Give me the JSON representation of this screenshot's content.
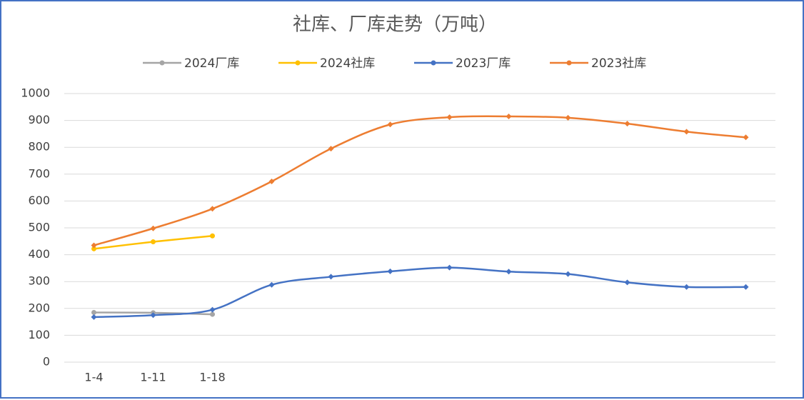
{
  "chart_data": {
    "type": "line",
    "title": "社库、厂库走势（万吨）",
    "categories": [
      "1-4",
      "1-11",
      "1-18",
      null,
      null,
      null,
      null,
      null,
      null,
      null,
      null,
      null
    ],
    "series": [
      {
        "name": "2024厂库",
        "color": "#a5a5a5",
        "marker": "circle",
        "values": [
          185,
          184,
          178,
          null,
          null,
          null,
          null,
          null,
          null,
          null,
          null,
          null
        ]
      },
      {
        "name": "2024社库",
        "color": "#ffc000",
        "marker": "circle",
        "values": [
          422,
          448,
          470,
          null,
          null,
          null,
          null,
          null,
          null,
          null,
          null,
          null
        ]
      },
      {
        "name": "2023厂库",
        "color": "#4472c4",
        "marker": "diamond",
        "values": [
          168,
          175,
          195,
          288,
          318,
          338,
          352,
          337,
          328,
          297,
          280,
          280
        ]
      },
      {
        "name": "2023社库",
        "color": "#ed7d31",
        "marker": "diamond",
        "values": [
          435,
          498,
          571,
          673,
          795,
          885,
          912,
          915,
          910,
          888,
          858,
          837
        ]
      }
    ],
    "ylim": [
      0,
      1000
    ],
    "yticks": [
      0,
      100,
      200,
      300,
      400,
      500,
      600,
      700,
      800,
      900,
      1000
    ],
    "grid": true,
    "smooth": true,
    "legend": "top"
  }
}
